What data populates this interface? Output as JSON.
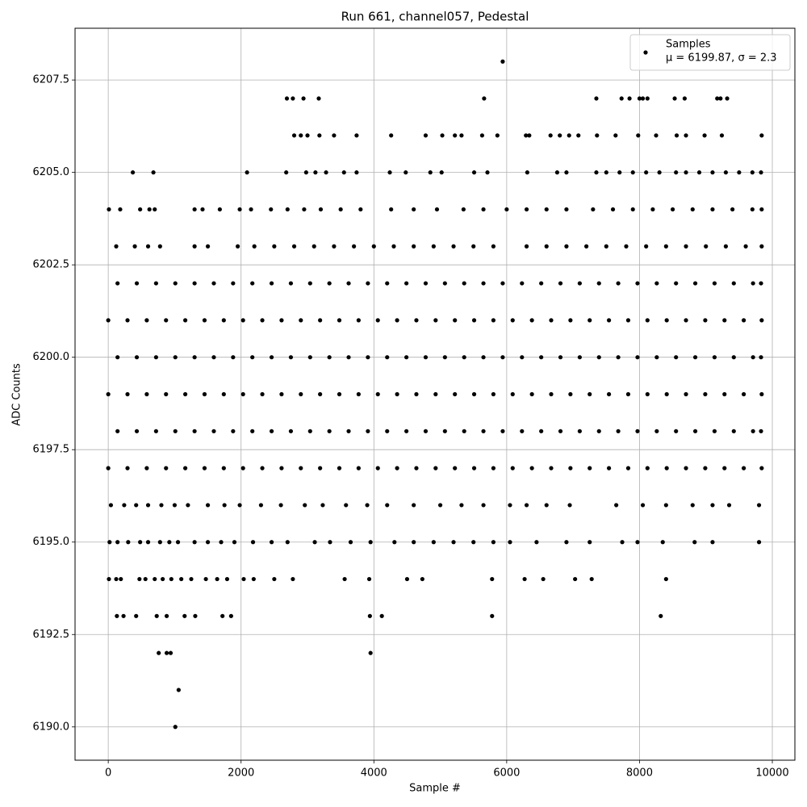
{
  "chart_data": {
    "type": "scatter",
    "title": "Run 661, channel057, Pedestal",
    "x_label": "Sample #",
    "y_label": "ADC Counts",
    "xlim": [
      -500,
      10340
    ],
    "ylim": [
      6189.1,
      6208.9
    ],
    "xticks": [
      0,
      2000,
      4000,
      6000,
      8000,
      10000
    ],
    "yticks": [
      {
        "value": 6190,
        "label": "6190.0"
      },
      6192.5,
      {
        "value": 6195,
        "label": "6195.0"
      },
      6197.5,
      {
        "value": 6200,
        "label": "6200.0"
      },
      6202.5,
      {
        "value": 6205,
        "label": "6205.0"
      },
      6207.5
    ],
    "grid": true,
    "legend": "upper right",
    "legend_note": "μ = 6199.87, σ = 2.3",
    "series": [
      {
        "name": "Samples",
        "color": "#000000",
        "x": [
          5940,
          2690,
          2780,
          2940,
          3170,
          5660,
          7350,
          7730,
          7850,
          8000,
          8050,
          8120,
          8530,
          8680,
          9170,
          9220,
          9320,
          2800,
          2900,
          3000,
          3180,
          3400,
          3740,
          4260,
          4780,
          5030,
          5220,
          5320,
          5630,
          5860,
          6290,
          6340,
          6660,
          6800,
          6940,
          7080,
          7360,
          7640,
          7980,
          8250,
          8560,
          8700,
          8980,
          9240,
          9840,
          370,
          680,
          2090,
          2680,
          2980,
          3120,
          3280,
          3550,
          3740,
          4240,
          4480,
          4850,
          5020,
          5510,
          5710,
          6310,
          6760,
          6900,
          7350,
          7500,
          7700,
          7900,
          8100,
          8300,
          8550,
          8700,
          8900,
          9100,
          9300,
          9500,
          9700,
          9830,
          10,
          180,
          480,
          620,
          700,
          1300,
          1420,
          1680,
          1980,
          2150,
          2450,
          2700,
          2950,
          3200,
          3500,
          3800,
          4260,
          4600,
          4950,
          5350,
          5650,
          6000,
          6300,
          6600,
          6900,
          7300,
          7600,
          7900,
          8200,
          8500,
          8800,
          9100,
          9400,
          9700,
          9840,
          120,
          400,
          600,
          780,
          1300,
          1500,
          1950,
          2200,
          2500,
          2800,
          3100,
          3400,
          3700,
          4000,
          4300,
          4600,
          4900,
          5200,
          5500,
          5800,
          6300,
          6600,
          6900,
          7200,
          7500,
          7800,
          8100,
          8400,
          8700,
          9000,
          9300,
          9600,
          9840,
          140,
          430,
          720,
          1010,
          1300,
          1590,
          1880,
          2170,
          2460,
          2750,
          3040,
          3330,
          3620,
          3910,
          4200,
          4490,
          4780,
          5070,
          5360,
          5650,
          5940,
          6230,
          6520,
          6810,
          7100,
          7390,
          7680,
          7970,
          8260,
          8550,
          8840,
          9130,
          9420,
          9710,
          9830,
          0,
          290,
          580,
          870,
          1160,
          1450,
          1740,
          2030,
          2320,
          2610,
          2900,
          3190,
          3480,
          3770,
          4060,
          4350,
          4640,
          4930,
          5220,
          5510,
          5800,
          6090,
          6380,
          6670,
          6960,
          7250,
          7540,
          7830,
          8120,
          8410,
          8700,
          8990,
          9280,
          9570,
          9840,
          140,
          430,
          720,
          1010,
          1300,
          1590,
          1880,
          2170,
          2460,
          2750,
          3040,
          3330,
          3620,
          3910,
          4200,
          4490,
          4780,
          5070,
          5360,
          5650,
          5940,
          6230,
          6520,
          6810,
          7100,
          7390,
          7680,
          7970,
          8260,
          8550,
          8840,
          9130,
          9420,
          9710,
          9830,
          0,
          290,
          580,
          870,
          1160,
          1450,
          1740,
          2030,
          2320,
          2610,
          2900,
          3190,
          3480,
          3770,
          4060,
          4350,
          4640,
          4930,
          5220,
          5510,
          5800,
          6090,
          6380,
          6670,
          6960,
          7250,
          7540,
          7830,
          8120,
          8410,
          8700,
          8990,
          9280,
          9570,
          9840,
          140,
          430,
          720,
          1010,
          1300,
          1590,
          1880,
          2170,
          2460,
          2750,
          3040,
          3330,
          3620,
          3910,
          4200,
          4490,
          4780,
          5070,
          5360,
          5650,
          5940,
          6230,
          6520,
          6810,
          7100,
          7390,
          7680,
          7970,
          8260,
          8550,
          8840,
          9130,
          9420,
          9710,
          9830,
          0,
          290,
          580,
          870,
          1160,
          1450,
          1740,
          2030,
          2320,
          2610,
          2900,
          3190,
          3480,
          3770,
          4060,
          4350,
          4640,
          4930,
          5220,
          5510,
          5800,
          6090,
          6380,
          6670,
          6960,
          7250,
          7540,
          7830,
          8120,
          8410,
          8700,
          8990,
          9280,
          9570,
          9840,
          40,
          240,
          420,
          600,
          800,
          1000,
          1200,
          1500,
          1750,
          1980,
          2300,
          2600,
          2960,
          3230,
          3580,
          3900,
          4200,
          4600,
          5000,
          5320,
          5650,
          6050,
          6300,
          6600,
          6950,
          7650,
          8050,
          8400,
          8800,
          9100,
          9350,
          9800,
          20,
          140,
          300,
          480,
          600,
          780,
          920,
          1050,
          1300,
          1500,
          1700,
          1900,
          2180,
          2460,
          2700,
          3110,
          3340,
          3650,
          3950,
          4310,
          4600,
          4900,
          5200,
          5500,
          5800,
          6050,
          6450,
          6900,
          7250,
          7740,
          7970,
          8350,
          8830,
          9100,
          9800,
          10,
          120,
          190,
          470,
          560,
          700,
          820,
          950,
          1100,
          1250,
          1470,
          1640,
          1790,
          2040,
          2190,
          2500,
          2780,
          3560,
          3930,
          4500,
          4730,
          5780,
          6270,
          6550,
          7030,
          7280,
          8400,
          130,
          230,
          420,
          730,
          880,
          1150,
          1310,
          1720,
          1850,
          3940,
          4120,
          5780,
          8320,
          760,
          880,
          940,
          3950,
          1060,
          1010
        ],
        "values": [
          6208,
          6207,
          6207,
          6207,
          6207,
          6207,
          6207,
          6207,
          6207,
          6207,
          6207,
          6207,
          6207,
          6207,
          6207,
          6207,
          6207,
          6206,
          6206,
          6206,
          6206,
          6206,
          6206,
          6206,
          6206,
          6206,
          6206,
          6206,
          6206,
          6206,
          6206,
          6206,
          6206,
          6206,
          6206,
          6206,
          6206,
          6206,
          6206,
          6206,
          6206,
          6206,
          6206,
          6206,
          6206,
          6205,
          6205,
          6205,
          6205,
          6205,
          6205,
          6205,
          6205,
          6205,
          6205,
          6205,
          6205,
          6205,
          6205,
          6205,
          6205,
          6205,
          6205,
          6205,
          6205,
          6205,
          6205,
          6205,
          6205,
          6205,
          6205,
          6205,
          6205,
          6205,
          6205,
          6205,
          6205,
          6204,
          6204,
          6204,
          6204,
          6204,
          6204,
          6204,
          6204,
          6204,
          6204,
          6204,
          6204,
          6204,
          6204,
          6204,
          6204,
          6204,
          6204,
          6204,
          6204,
          6204,
          6204,
          6204,
          6204,
          6204,
          6204,
          6204,
          6204,
          6204,
          6204,
          6204,
          6204,
          6204,
          6204,
          6204,
          6203,
          6203,
          6203,
          6203,
          6203,
          6203,
          6203,
          6203,
          6203,
          6203,
          6203,
          6203,
          6203,
          6203,
          6203,
          6203,
          6203,
          6203,
          6203,
          6203,
          6203,
          6203,
          6203,
          6203,
          6203,
          6203,
          6203,
          6203,
          6203,
          6203,
          6203,
          6203,
          6203,
          6202,
          6202,
          6202,
          6202,
          6202,
          6202,
          6202,
          6202,
          6202,
          6202,
          6202,
          6202,
          6202,
          6202,
          6202,
          6202,
          6202,
          6202,
          6202,
          6202,
          6202,
          6202,
          6202,
          6202,
          6202,
          6202,
          6202,
          6202,
          6202,
          6202,
          6202,
          6202,
          6202,
          6202,
          6202,
          6201,
          6201,
          6201,
          6201,
          6201,
          6201,
          6201,
          6201,
          6201,
          6201,
          6201,
          6201,
          6201,
          6201,
          6201,
          6201,
          6201,
          6201,
          6201,
          6201,
          6201,
          6201,
          6201,
          6201,
          6201,
          6201,
          6201,
          6201,
          6201,
          6201,
          6201,
          6201,
          6201,
          6201,
          6201,
          6200,
          6200,
          6200,
          6200,
          6200,
          6200,
          6200,
          6200,
          6200,
          6200,
          6200,
          6200,
          6200,
          6200,
          6200,
          6200,
          6200,
          6200,
          6200,
          6200,
          6200,
          6200,
          6200,
          6200,
          6200,
          6200,
          6200,
          6200,
          6200,
          6200,
          6200,
          6200,
          6200,
          6200,
          6200,
          6199,
          6199,
          6199,
          6199,
          6199,
          6199,
          6199,
          6199,
          6199,
          6199,
          6199,
          6199,
          6199,
          6199,
          6199,
          6199,
          6199,
          6199,
          6199,
          6199,
          6199,
          6199,
          6199,
          6199,
          6199,
          6199,
          6199,
          6199,
          6199,
          6199,
          6199,
          6199,
          6199,
          6199,
          6199,
          6198,
          6198,
          6198,
          6198,
          6198,
          6198,
          6198,
          6198,
          6198,
          6198,
          6198,
          6198,
          6198,
          6198,
          6198,
          6198,
          6198,
          6198,
          6198,
          6198,
          6198,
          6198,
          6198,
          6198,
          6198,
          6198,
          6198,
          6198,
          6198,
          6198,
          6198,
          6198,
          6198,
          6198,
          6198,
          6197,
          6197,
          6197,
          6197,
          6197,
          6197,
          6197,
          6197,
          6197,
          6197,
          6197,
          6197,
          6197,
          6197,
          6197,
          6197,
          6197,
          6197,
          6197,
          6197,
          6197,
          6197,
          6197,
          6197,
          6197,
          6197,
          6197,
          6197,
          6197,
          6197,
          6197,
          6197,
          6197,
          6197,
          6197,
          6196,
          6196,
          6196,
          6196,
          6196,
          6196,
          6196,
          6196,
          6196,
          6196,
          6196,
          6196,
          6196,
          6196,
          6196,
          6196,
          6196,
          6196,
          6196,
          6196,
          6196,
          6196,
          6196,
          6196,
          6196,
          6196,
          6196,
          6196,
          6196,
          6196,
          6196,
          6196,
          6195,
          6195,
          6195,
          6195,
          6195,
          6195,
          6195,
          6195,
          6195,
          6195,
          6195,
          6195,
          6195,
          6195,
          6195,
          6195,
          6195,
          6195,
          6195,
          6195,
          6195,
          6195,
          6195,
          6195,
          6195,
          6195,
          6195,
          6195,
          6195,
          6195,
          6195,
          6195,
          6195,
          6195,
          6195,
          6194,
          6194,
          6194,
          6194,
          6194,
          6194,
          6194,
          6194,
          6194,
          6194,
          6194,
          6194,
          6194,
          6194,
          6194,
          6194,
          6194,
          6194,
          6194,
          6194,
          6194,
          6194,
          6194,
          6194,
          6194,
          6194,
          6194,
          6193,
          6193,
          6193,
          6193,
          6193,
          6193,
          6193,
          6193,
          6193,
          6193,
          6193,
          6193,
          6193,
          6192,
          6192,
          6192,
          6192,
          6191,
          6190
        ]
      }
    ]
  }
}
